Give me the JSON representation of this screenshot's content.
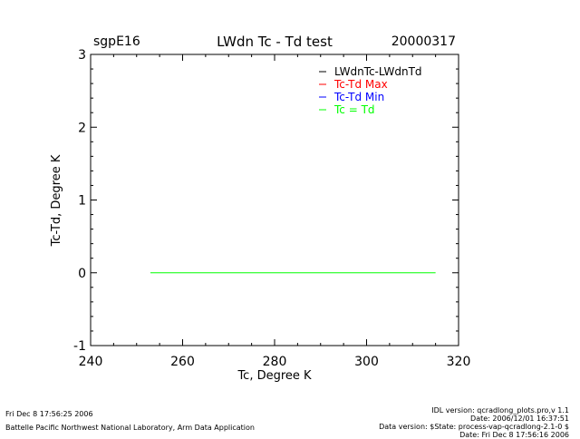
{
  "header": {
    "site": "sgpE16",
    "title": "LWdn Tc - Td test",
    "date": "20000317"
  },
  "chart_data": {
    "type": "line",
    "title": "LWdn Tc - Td test",
    "xlabel": "Tc, Degree K",
    "ylabel": "Tc-Td, Degree K",
    "xlim": [
      240,
      320
    ],
    "ylim": [
      -1,
      3
    ],
    "x_ticks": [
      "240",
      "260",
      "280",
      "300",
      "320"
    ],
    "y_ticks": [
      "-1",
      "0",
      "1",
      "2",
      "3"
    ],
    "x_tick_values": [
      240,
      260,
      280,
      300,
      320
    ],
    "y_tick_values": [
      -1,
      0,
      1,
      2,
      3
    ],
    "grid": false,
    "legend_position": "top-right",
    "legend": [
      {
        "label": "LWdnTc-LWdnTd",
        "color": "#000000"
      },
      {
        "label": "Tc-Td Max",
        "color": "#ff0000"
      },
      {
        "label": "Tc-Td Min",
        "color": "#0000ff"
      },
      {
        "label": "Tc = Td",
        "color": "#00ff00"
      }
    ],
    "series": [
      {
        "name": "Tc = Td",
        "color": "#00ff00",
        "x": [
          253,
          315
        ],
        "y": [
          0,
          0
        ]
      }
    ]
  },
  "footer": {
    "timestamp": "Fri Dec  8 17:56:25 2006",
    "organization": "Battelle Pacific Northwest National Laboratory, Arm Data Application",
    "idl_version": "IDL version: qcradlong_plots.pro,v 1.1",
    "date_line": "Date: 2006/12/01 16:37:51",
    "data_version": "Data version: $State: process-vap-qcradlong-2.1-0 $",
    "date_processed": "Date: Fri Dec  8 17:56:16 2006"
  }
}
